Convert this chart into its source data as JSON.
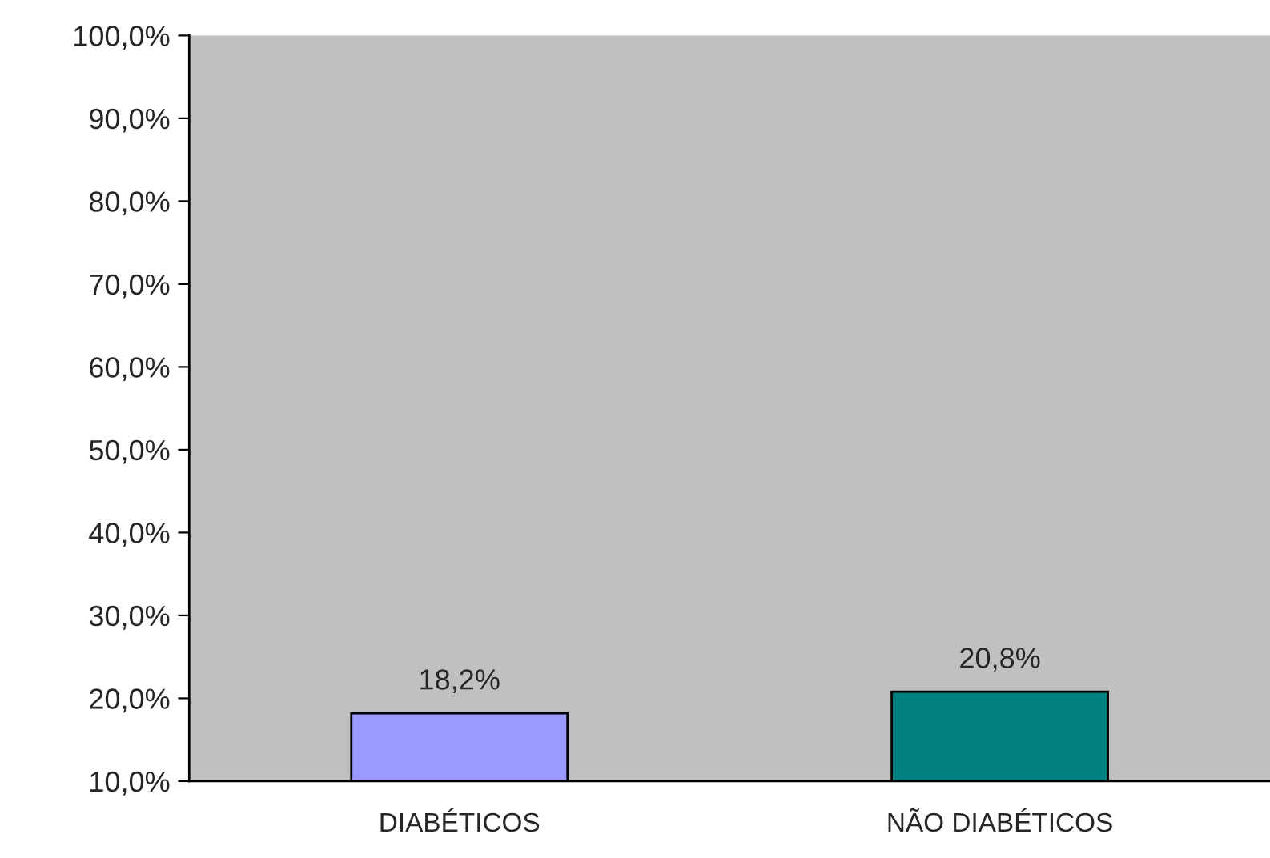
{
  "chart_data": {
    "type": "bar",
    "categories": [
      "DIABÉTICOS",
      "NÃO DIABÉTICOS"
    ],
    "values": [
      18.2,
      20.8
    ],
    "colors": [
      "#9999ff",
      "#008080"
    ],
    "value_labels": [
      "18,2%",
      "20,8%"
    ],
    "ylim": [
      10,
      100
    ],
    "yticks": [
      {
        "value": 10,
        "label": "10,0%"
      },
      {
        "value": 20,
        "label": "20,0%"
      },
      {
        "value": 30,
        "label": "30,0%"
      },
      {
        "value": 40,
        "label": "40,0%"
      },
      {
        "value": 50,
        "label": "50,0%"
      },
      {
        "value": 60,
        "label": "60,0%"
      },
      {
        "value": 70,
        "label": "70,0%"
      },
      {
        "value": 80,
        "label": "80,0%"
      },
      {
        "value": 90,
        "label": "90,0%"
      },
      {
        "value": 100,
        "label": "100,0%"
      }
    ],
    "grid": false,
    "legend": false
  }
}
